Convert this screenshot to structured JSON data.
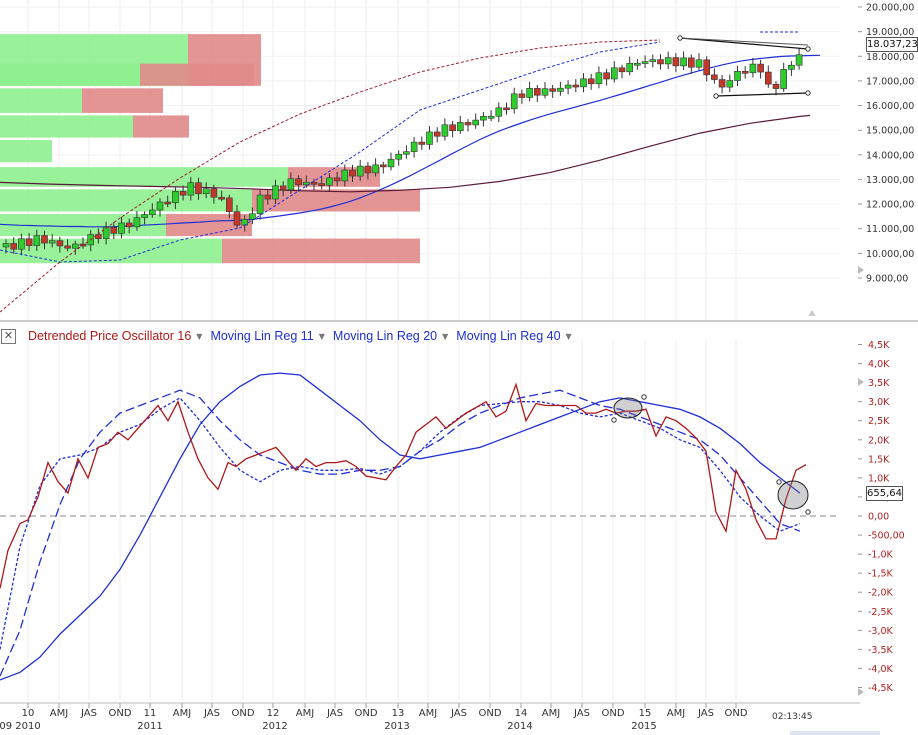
{
  "colors": {
    "up_candle": "#2ecc2e",
    "down_candle": "#c0392b",
    "vol_up": "#8ef08e",
    "vol_down": "#e08a8a",
    "ma_blue": "#1f2fd6",
    "ma_purple": "#5a1a3a",
    "dpo_red": "#b01818",
    "lin_blue": "#1f2fd6"
  },
  "chart_data": [
    {
      "type": "candlestick",
      "title": "",
      "ylim": [
        8200,
        20000
      ],
      "y_ticks": [
        "20.000,00",
        "19.000,00",
        "18.000,00",
        "17.000,00",
        "16.000,00",
        "15.000,00",
        "14.000,00",
        "13.000,00",
        "12.000,00",
        "11.000,00",
        "10.000,00",
        "9.000,00"
      ],
      "y_tick_values": [
        20000,
        19000,
        18000,
        17000,
        16000,
        15000,
        14000,
        13000,
        12000,
        11000,
        10000,
        9000
      ],
      "last_price_label": "18.037,23",
      "series": [
        {
          "name": "Price",
          "values_source": "monthly candles 2010-2015"
        },
        {
          "name": "Moving Average blue",
          "x": [
            0,
            10,
            20,
            30,
            40,
            50,
            60,
            70,
            80,
            90,
            100,
            110,
            120,
            130,
            140,
            150,
            160,
            170,
            180,
            190,
            200,
            210,
            220,
            230,
            240,
            250,
            260,
            270,
            280,
            290,
            300,
            310,
            320,
            330,
            340,
            350,
            360,
            370,
            380,
            390,
            400,
            410,
            420,
            430,
            440,
            450,
            460,
            470,
            480,
            490,
            500,
            510,
            520,
            530,
            540,
            550,
            560,
            570,
            580,
            590,
            600,
            610,
            620,
            630,
            640,
            650,
            660,
            670,
            680,
            690,
            700,
            710,
            720,
            730,
            740,
            750,
            760,
            770,
            780,
            790,
            800,
            810,
            820
          ],
          "values": [
            11180,
            11160,
            11140,
            11130,
            11120,
            11110,
            11100,
            11090,
            11090,
            11080,
            11080,
            11080,
            11100,
            11120,
            11140,
            11160,
            11180,
            11200,
            11230,
            11250,
            11270,
            11300,
            11320,
            11330,
            11350,
            11370,
            11420,
            11470,
            11520,
            11580,
            11640,
            11710,
            11790,
            11880,
            11990,
            12110,
            12250,
            12410,
            12580,
            12760,
            12950,
            13150,
            13360,
            13570,
            13780,
            14000,
            14210,
            14420,
            14620,
            14810,
            14980,
            15130,
            15270,
            15410,
            15540,
            15660,
            15770,
            15880,
            15990,
            16100,
            16210,
            16330,
            16450,
            16570,
            16690,
            16820,
            16940,
            17070,
            17190,
            17310,
            17420,
            17530,
            17630,
            17720,
            17800,
            17860,
            17910,
            17950,
            17990,
            18010,
            18020,
            18030,
            18040
          ]
        },
        {
          "name": "Moving Average purple",
          "x": [
            0,
            50,
            100,
            150,
            200,
            250,
            300,
            350,
            400,
            450,
            500,
            550,
            600,
            650,
            700,
            750,
            800,
            810
          ],
          "values": [
            12880,
            12810,
            12760,
            12720,
            12680,
            12620,
            12540,
            12500,
            12560,
            12680,
            12920,
            13280,
            13780,
            14350,
            14880,
            15280,
            15560,
            15600
          ]
        }
      ],
      "volume_profile": [
        {
          "price_low": 16800,
          "price_high": 18900,
          "up": 188,
          "down": 73
        },
        {
          "price_low": 16800,
          "price_high": 17700,
          "up": 140,
          "down": 114
        },
        {
          "price_low": 15700,
          "price_high": 16700,
          "up": 82,
          "down": 81
        },
        {
          "price_low": 14700,
          "price_high": 15600,
          "up": 133,
          "down": 56
        },
        {
          "price_low": 13700,
          "price_high": 14600,
          "up": 52,
          "down": 0
        },
        {
          "price_low": 12700,
          "price_high": 13500,
          "up": 288,
          "down": 92
        },
        {
          "price_low": 11700,
          "price_high": 12600,
          "up": 252,
          "down": 168
        },
        {
          "price_low": 10700,
          "price_high": 11600,
          "up": 166,
          "down": 86
        },
        {
          "price_low": 9600,
          "price_high": 10600,
          "up": 222,
          "down": 198
        }
      ]
    },
    {
      "type": "line",
      "title": "",
      "series": [
        {
          "name": "Detrended Price Oscillator 16",
          "x": [
            0,
            8,
            20,
            28,
            38,
            48,
            58,
            68,
            78,
            88,
            98,
            108,
            118,
            128,
            138,
            148,
            158,
            168,
            178,
            188,
            198,
            208,
            218,
            228,
            236,
            246,
            256,
            266,
            276,
            286,
            296,
            306,
            316,
            326,
            336,
            346,
            356,
            366,
            376,
            386,
            396,
            406,
            416,
            426,
            436,
            446,
            456,
            466,
            476,
            486,
            496,
            506,
            516,
            526,
            536,
            546,
            556,
            566,
            576,
            586,
            596,
            606,
            616,
            626,
            636,
            646,
            656,
            666,
            676,
            686,
            696,
            706,
            716,
            726,
            736,
            746,
            756,
            766,
            776,
            786,
            796,
            806
          ],
          "values": [
            -1900,
            -900,
            -200,
            -100,
            500,
            1400,
            900,
            600,
            1500,
            1000,
            1800,
            1900,
            2200,
            2000,
            2300,
            2600,
            2900,
            2500,
            3000,
            2200,
            1500,
            1000,
            700,
            1400,
            1300,
            1500,
            1600,
            1700,
            1800,
            1500,
            1200,
            1500,
            1300,
            1400,
            1400,
            1450,
            1300,
            1050,
            1000,
            950,
            1300,
            1600,
            2200,
            2400,
            2600,
            2300,
            2500,
            2700,
            2850,
            3000,
            2600,
            2750,
            3450,
            2500,
            2950,
            2900,
            2900,
            2900,
            2900,
            2700,
            2700,
            2800,
            2700,
            2750,
            2750,
            2800,
            2100,
            2600,
            2500,
            2300,
            2050,
            1700,
            100,
            -400,
            1200,
            700,
            -100,
            -600,
            -600,
            450,
            1200,
            1350
          ]
        },
        {
          "name": "Moving Lin Reg 11",
          "x": [
            0,
            20,
            40,
            60,
            80,
            100,
            120,
            140,
            160,
            180,
            200,
            220,
            240,
            260,
            280,
            300,
            320,
            340,
            360,
            380,
            400,
            420,
            440,
            460,
            480,
            500,
            520,
            540,
            560,
            580,
            600,
            620,
            640,
            660,
            680,
            700,
            720,
            740,
            760,
            780,
            800
          ],
          "values": [
            -3500,
            -800,
            800,
            1500,
            1600,
            1800,
            2200,
            2400,
            2800,
            3100,
            2500,
            1800,
            1200,
            900,
            1200,
            1300,
            1200,
            1200,
            1250,
            1100,
            1300,
            1700,
            2200,
            2600,
            2900,
            2950,
            3000,
            3000,
            2900,
            2700,
            2600,
            2700,
            2500,
            2300,
            2000,
            1800,
            1200,
            500,
            0,
            -400,
            -200
          ]
        },
        {
          "name": "Moving Lin Reg 20",
          "x": [
            0,
            20,
            40,
            60,
            80,
            100,
            120,
            140,
            160,
            180,
            200,
            220,
            240,
            260,
            280,
            300,
            320,
            340,
            360,
            380,
            400,
            420,
            440,
            460,
            480,
            500,
            520,
            540,
            560,
            580,
            600,
            620,
            640,
            660,
            680,
            700,
            720,
            740,
            760,
            780,
            800
          ],
          "values": [
            -4200,
            -3000,
            -1200,
            300,
            1500,
            2200,
            2700,
            2900,
            3100,
            3300,
            3100,
            2500,
            2000,
            1600,
            1400,
            1200,
            1100,
            1100,
            1200,
            1200,
            1300,
            1700,
            2000,
            2400,
            2700,
            2900,
            3100,
            3200,
            3300,
            3100,
            2900,
            2800,
            2600,
            2400,
            2200,
            2000,
            1600,
            1000,
            400,
            -200,
            -400
          ]
        },
        {
          "name": "Moving Lin Reg 40",
          "x": [
            0,
            20,
            40,
            60,
            80,
            100,
            120,
            140,
            160,
            180,
            200,
            220,
            240,
            260,
            280,
            300,
            320,
            340,
            360,
            380,
            400,
            420,
            440,
            460,
            480,
            500,
            520,
            540,
            560,
            580,
            600,
            620,
            640,
            660,
            680,
            700,
            720,
            740,
            760,
            780,
            800
          ],
          "values": [
            -4300,
            -4100,
            -3700,
            -3100,
            -2600,
            -2100,
            -1400,
            -500,
            500,
            1500,
            2400,
            3000,
            3400,
            3700,
            3750,
            3700,
            3300,
            2900,
            2500,
            2000,
            1600,
            1500,
            1600,
            1700,
            1800,
            2000,
            2200,
            2400,
            2600,
            2800,
            3000,
            3100,
            3000,
            2900,
            2800,
            2600,
            2300,
            1900,
            1400,
            1000,
            600
          ]
        }
      ],
      "ylim": [
        -4700,
        4700
      ],
      "y_ticks": [
        "4,5K",
        "4,0K",
        "3,5K",
        "3,0K",
        "2,5K",
        "2,0K",
        "1,5K",
        "1,0K",
        "500,00",
        "0,00",
        "-500,00",
        "-1,0K",
        "-1,5K",
        "-2,0K",
        "-2,5K",
        "-3,0K",
        "-3,5K",
        "-4,0K",
        "-4,5K"
      ],
      "y_tick_values": [
        4500,
        4000,
        3500,
        3000,
        2500,
        2000,
        1500,
        1000,
        500,
        0,
        -500,
        -1000,
        -1500,
        -2000,
        -2500,
        -3000,
        -3500,
        -4000,
        -4500
      ],
      "last_value_label": "655,64"
    }
  ],
  "legend": {
    "dpo_label": "Detrended Price Oscillator 16",
    "linreg11_label": "Moving Lin Reg 11",
    "linreg20_label": "Moving Lin Reg 20",
    "linreg40_label": "Moving Lin Reg 40"
  },
  "x_axis": {
    "month_labels": [
      "10",
      "AMJ",
      "JAS",
      "OND",
      "11",
      "AMJ",
      "JAS",
      "OND",
      "12",
      "AMJ",
      "JAS",
      "OND",
      "13",
      "AMJ",
      "JAS",
      "OND",
      "14",
      "AMJ",
      "JAS",
      "OND",
      "15",
      "AMJ",
      "JAS",
      "OND"
    ],
    "month_positions": [
      28,
      59,
      89,
      120,
      150,
      182,
      212,
      243,
      273,
      305,
      335,
      366,
      398,
      428,
      459,
      490,
      521,
      551,
      582,
      613,
      645,
      676,
      706,
      736
    ],
    "year_labels": [
      "09 2010",
      "2011",
      "2012",
      "2013",
      "2014",
      "2015"
    ],
    "year_positions": [
      20,
      150,
      275,
      397,
      520,
      644
    ]
  },
  "clock": "02:13:45"
}
